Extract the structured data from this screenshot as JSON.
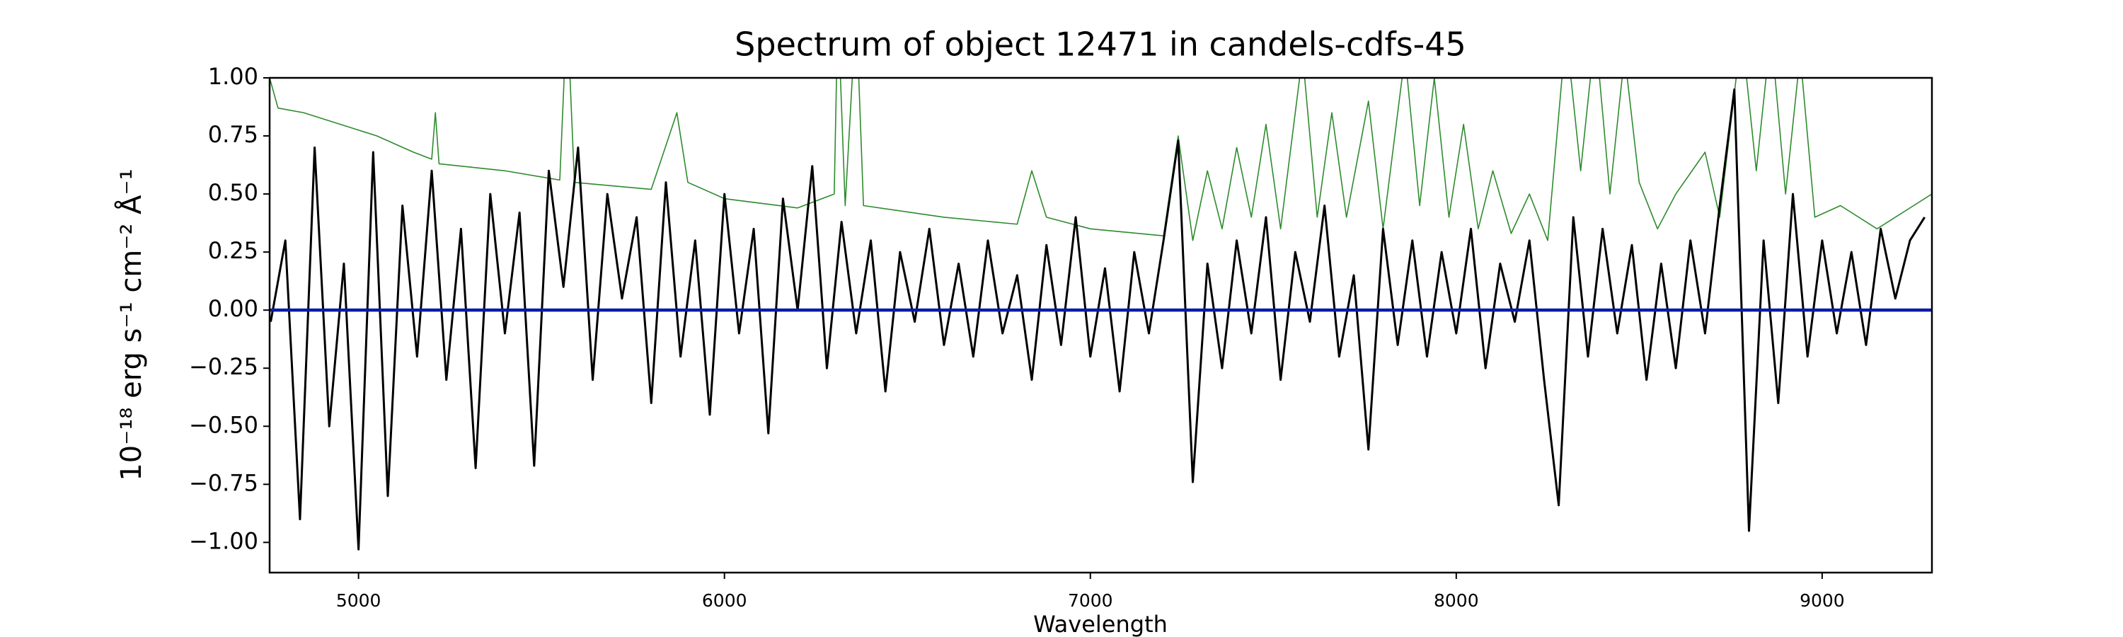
{
  "chart_data": {
    "type": "line",
    "title": "Spectrum of object 12471 in candels-cdfs-45",
    "x_label": "Wavelength",
    "y_label": "10⁻¹⁸ erg s⁻¹ cm⁻² Å⁻¹",
    "xlim": [
      4757,
      9300
    ],
    "ylim": [
      -1.13,
      1.0
    ],
    "xticks": [
      5000,
      6000,
      7000,
      8000,
      9000
    ],
    "yticks": [
      {
        "value": -1,
        "label": "−1.00"
      },
      {
        "value": -0.75,
        "label": "−0.75"
      },
      {
        "value": -0.5,
        "label": "−0.50"
      },
      {
        "value": -0.25,
        "label": "−0.25"
      },
      {
        "value": 0,
        "label": "0.00"
      },
      {
        "value": 0.25,
        "label": "0.25"
      },
      {
        "value": 0.5,
        "label": "0.50"
      },
      {
        "value": 0.75,
        "label": "0.75"
      },
      {
        "value": 1,
        "label": "1.00"
      }
    ],
    "grid": false,
    "series": [
      {
        "color": "#2e8b2e",
        "width": 1.6,
        "x": [
          4757,
          4780,
          4850,
          4950,
          5050,
          5150,
          5200,
          5210,
          5220,
          5400,
          5550,
          5570,
          5590,
          5800,
          5870,
          5900,
          6000,
          6200,
          6300,
          6310,
          6330,
          6360,
          6380,
          6600,
          6800,
          6840,
          6880,
          7000,
          7200,
          7240,
          7280,
          7320,
          7360,
          7400,
          7440,
          7480,
          7520,
          7580,
          7620,
          7660,
          7700,
          7760,
          7800,
          7860,
          7900,
          7940,
          7980,
          8020,
          8060,
          8100,
          8150,
          8200,
          8250,
          8300,
          8340,
          8380,
          8420,
          8460,
          8500,
          8550,
          8600,
          8680,
          8720,
          8780,
          8820,
          8860,
          8900,
          8940,
          8980,
          9050,
          9150,
          9250,
          9300
        ],
        "values": [
          1.0,
          0.87,
          0.85,
          0.8,
          0.75,
          0.68,
          0.65,
          0.85,
          0.63,
          0.6,
          0.56,
          1.3,
          0.55,
          0.52,
          0.85,
          0.55,
          0.48,
          0.44,
          0.5,
          1.3,
          0.45,
          1.3,
          0.45,
          0.4,
          0.37,
          0.6,
          0.4,
          0.35,
          0.32,
          0.75,
          0.3,
          0.6,
          0.35,
          0.7,
          0.4,
          0.8,
          0.35,
          1.1,
          0.4,
          0.85,
          0.4,
          0.9,
          0.35,
          1.1,
          0.45,
          1.0,
          0.4,
          0.8,
          0.35,
          0.6,
          0.33,
          0.5,
          0.3,
          1.2,
          0.6,
          1.2,
          0.5,
          1.1,
          0.55,
          0.35,
          0.5,
          0.68,
          0.4,
          1.2,
          0.6,
          1.2,
          0.5,
          1.1,
          0.4,
          0.45,
          0.35,
          0.45,
          0.5
        ]
      },
      {
        "color": "#000000",
        "width": 3,
        "x": [
          4760,
          4800,
          4840,
          4880,
          4920,
          4960,
          5000,
          5040,
          5080,
          5120,
          5160,
          5200,
          5240,
          5280,
          5320,
          5360,
          5400,
          5440,
          5480,
          5520,
          5560,
          5600,
          5640,
          5680,
          5720,
          5760,
          5800,
          5840,
          5880,
          5920,
          5960,
          6000,
          6040,
          6080,
          6120,
          6160,
          6200,
          6240,
          6280,
          6320,
          6360,
          6400,
          6440,
          6480,
          6520,
          6560,
          6600,
          6640,
          6680,
          6720,
          6760,
          6800,
          6840,
          6880,
          6920,
          6960,
          7000,
          7040,
          7080,
          7120,
          7160,
          7200,
          7240,
          7280,
          7320,
          7360,
          7400,
          7440,
          7480,
          7520,
          7560,
          7600,
          7640,
          7680,
          7720,
          7760,
          7800,
          7840,
          7880,
          7920,
          7960,
          8000,
          8040,
          8080,
          8120,
          8160,
          8200,
          8240,
          8280,
          8320,
          8360,
          8400,
          8440,
          8480,
          8520,
          8560,
          8600,
          8640,
          8680,
          8720,
          8760,
          8800,
          8840,
          8880,
          8920,
          8960,
          9000,
          9040,
          9080,
          9120,
          9160,
          9200,
          9240,
          9280
        ],
        "values": [
          -0.05,
          0.3,
          -0.9,
          0.7,
          -0.5,
          0.2,
          -1.03,
          0.68,
          -0.8,
          0.45,
          -0.2,
          0.6,
          -0.3,
          0.35,
          -0.68,
          0.5,
          -0.1,
          0.42,
          -0.67,
          0.6,
          0.1,
          0.7,
          -0.3,
          0.5,
          0.05,
          0.4,
          -0.4,
          0.55,
          -0.2,
          0.3,
          -0.45,
          0.5,
          -0.1,
          0.35,
          -0.53,
          0.48,
          0.0,
          0.62,
          -0.25,
          0.38,
          -0.1,
          0.3,
          -0.35,
          0.25,
          -0.05,
          0.35,
          -0.15,
          0.2,
          -0.2,
          0.3,
          -0.1,
          0.15,
          -0.3,
          0.28,
          -0.15,
          0.4,
          -0.2,
          0.18,
          -0.35,
          0.25,
          -0.1,
          0.3,
          0.73,
          -0.74,
          0.2,
          -0.25,
          0.3,
          -0.1,
          0.4,
          -0.3,
          0.25,
          -0.05,
          0.45,
          -0.2,
          0.15,
          -0.6,
          0.35,
          -0.15,
          0.3,
          -0.2,
          0.25,
          -0.1,
          0.35,
          -0.25,
          0.2,
          -0.05,
          0.3,
          -0.3,
          -0.84,
          0.4,
          -0.2,
          0.35,
          -0.1,
          0.28,
          -0.3,
          0.2,
          -0.25,
          0.3,
          -0.1,
          0.45,
          0.95,
          -0.95,
          0.3,
          -0.4,
          0.5,
          -0.2,
          0.3,
          -0.1,
          0.25,
          -0.15,
          0.35,
          0.05,
          0.3,
          0.4
        ]
      },
      {
        "color": "#0a1aa8",
        "width": 4.5,
        "x": [
          4757,
          9300
        ],
        "values": [
          0,
          0
        ]
      }
    ]
  }
}
